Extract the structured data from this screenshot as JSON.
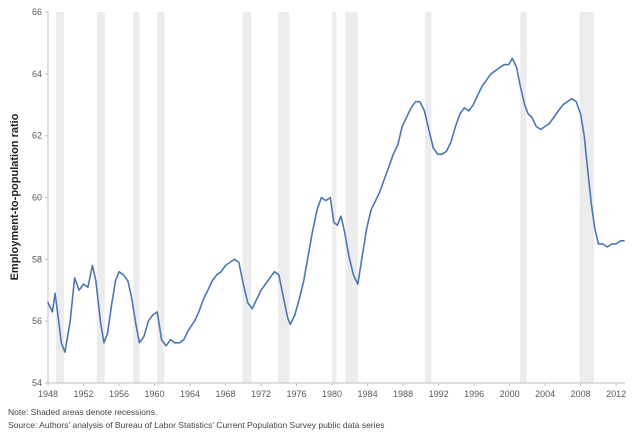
{
  "chart_data": {
    "type": "line",
    "title": "",
    "xlabel": "",
    "ylabel": "Employment-to-population ratio",
    "xlim": [
      1948,
      2013
    ],
    "ylim": [
      54,
      66
    ],
    "grid": false,
    "x_ticks": [
      "1948",
      "1952",
      "1956",
      "1960",
      "1964",
      "1968",
      "1972",
      "1976",
      "1980",
      "1984",
      "1988",
      "1992",
      "1996",
      "2000",
      "2004",
      "2008",
      "2012"
    ],
    "y_ticks": [
      "54",
      "56",
      "58",
      "60",
      "62",
      "64",
      "66"
    ],
    "colors": {
      "line": "#4a77b4",
      "recession": "#ececec",
      "axis": "#bfbfbf"
    },
    "recessions": [
      [
        1948.9,
        1949.8
      ],
      [
        1953.5,
        1954.4
      ],
      [
        1957.6,
        1958.3
      ],
      [
        1960.3,
        1961.1
      ],
      [
        1969.9,
        1970.9
      ],
      [
        1973.9,
        1975.2
      ],
      [
        1980.0,
        1980.5
      ],
      [
        1981.5,
        1982.9
      ],
      [
        1990.5,
        1991.2
      ],
      [
        2001.2,
        2001.9
      ],
      [
        2007.9,
        2009.5
      ]
    ],
    "series": [
      {
        "name": "Employment-to-population ratio",
        "x": [
          1948,
          1948.5,
          1948.8,
          1949.2,
          1949.5,
          1949.9,
          1950.5,
          1951,
          1951.5,
          1952,
          1952.5,
          1953,
          1953.4,
          1953.9,
          1954.3,
          1954.7,
          1955.2,
          1955.6,
          1956,
          1956.5,
          1957,
          1957.4,
          1957.9,
          1958.3,
          1958.8,
          1959.3,
          1959.8,
          1960.3,
          1960.8,
          1961.3,
          1961.8,
          1962.3,
          1962.8,
          1963.3,
          1963.8,
          1964.5,
          1965,
          1965.5,
          1966,
          1966.5,
          1967,
          1967.5,
          1968,
          1968.5,
          1969,
          1969.5,
          1970,
          1970.5,
          1971,
          1971.5,
          1972,
          1972.5,
          1973,
          1973.5,
          1974,
          1974.5,
          1975,
          1975.3,
          1975.8,
          1976.3,
          1976.8,
          1977.3,
          1977.8,
          1978.3,
          1978.8,
          1979.3,
          1979.8,
          1980.2,
          1980.6,
          1981,
          1981.4,
          1981.9,
          1982.4,
          1982.9,
          1983.4,
          1983.9,
          1984.4,
          1984.9,
          1985.4,
          1985.9,
          1986.4,
          1986.9,
          1987.4,
          1987.9,
          1988.4,
          1988.9,
          1989.4,
          1989.9,
          1990.4,
          1990.9,
          1991.4,
          1991.9,
          1992.4,
          1992.9,
          1993.4,
          1993.9,
          1994.4,
          1994.9,
          1995.4,
          1995.9,
          1996.4,
          1996.9,
          1997.4,
          1997.9,
          1998.4,
          1998.9,
          1999.4,
          1999.9,
          2000.3,
          2000.8,
          2001.2,
          2001.7,
          2002.1,
          2002.5,
          2003,
          2003.5,
          2004,
          2004.5,
          2005,
          2005.5,
          2006,
          2006.5,
          2007,
          2007.5,
          2008,
          2008.4,
          2008.8,
          2009.2,
          2009.6,
          2010,
          2010.5,
          2011,
          2011.5,
          2012,
          2012.5,
          2012.9
        ],
        "values": [
          56.6,
          56.3,
          56.9,
          56.0,
          55.3,
          55.0,
          56.0,
          57.4,
          57.0,
          57.2,
          57.1,
          57.8,
          57.3,
          56.0,
          55.3,
          55.6,
          56.6,
          57.3,
          57.6,
          57.5,
          57.3,
          56.8,
          55.9,
          55.3,
          55.5,
          56.0,
          56.2,
          56.3,
          55.4,
          55.2,
          55.4,
          55.3,
          55.3,
          55.4,
          55.7,
          56.0,
          56.3,
          56.7,
          57.0,
          57.3,
          57.5,
          57.6,
          57.8,
          57.9,
          58.0,
          57.9,
          57.2,
          56.6,
          56.4,
          56.7,
          57.0,
          57.2,
          57.4,
          57.6,
          57.5,
          56.8,
          56.1,
          55.9,
          56.2,
          56.7,
          57.3,
          58.1,
          58.9,
          59.6,
          60.0,
          59.9,
          60.0,
          59.2,
          59.1,
          59.4,
          58.9,
          58.1,
          57.5,
          57.2,
          58.1,
          59.0,
          59.6,
          59.9,
          60.2,
          60.6,
          61.0,
          61.4,
          61.7,
          62.3,
          62.6,
          62.9,
          63.1,
          63.1,
          62.8,
          62.2,
          61.6,
          61.4,
          61.4,
          61.5,
          61.8,
          62.3,
          62.7,
          62.9,
          62.8,
          63.0,
          63.3,
          63.6,
          63.8,
          64.0,
          64.1,
          64.2,
          64.3,
          64.3,
          64.5,
          64.2,
          63.6,
          63.0,
          62.7,
          62.6,
          62.3,
          62.2,
          62.3,
          62.4,
          62.6,
          62.8,
          63.0,
          63.1,
          63.2,
          63.1,
          62.7,
          62.0,
          60.9,
          59.8,
          59.0,
          58.5,
          58.5,
          58.4,
          58.5,
          58.5,
          58.6,
          58.6
        ]
      }
    ]
  },
  "notes": {
    "line1": "Note: Shaded areas denote recessions.",
    "line2": "Source: Authors' analysis of Bureau of Labor Statistics' Current Population Survey public data series"
  }
}
